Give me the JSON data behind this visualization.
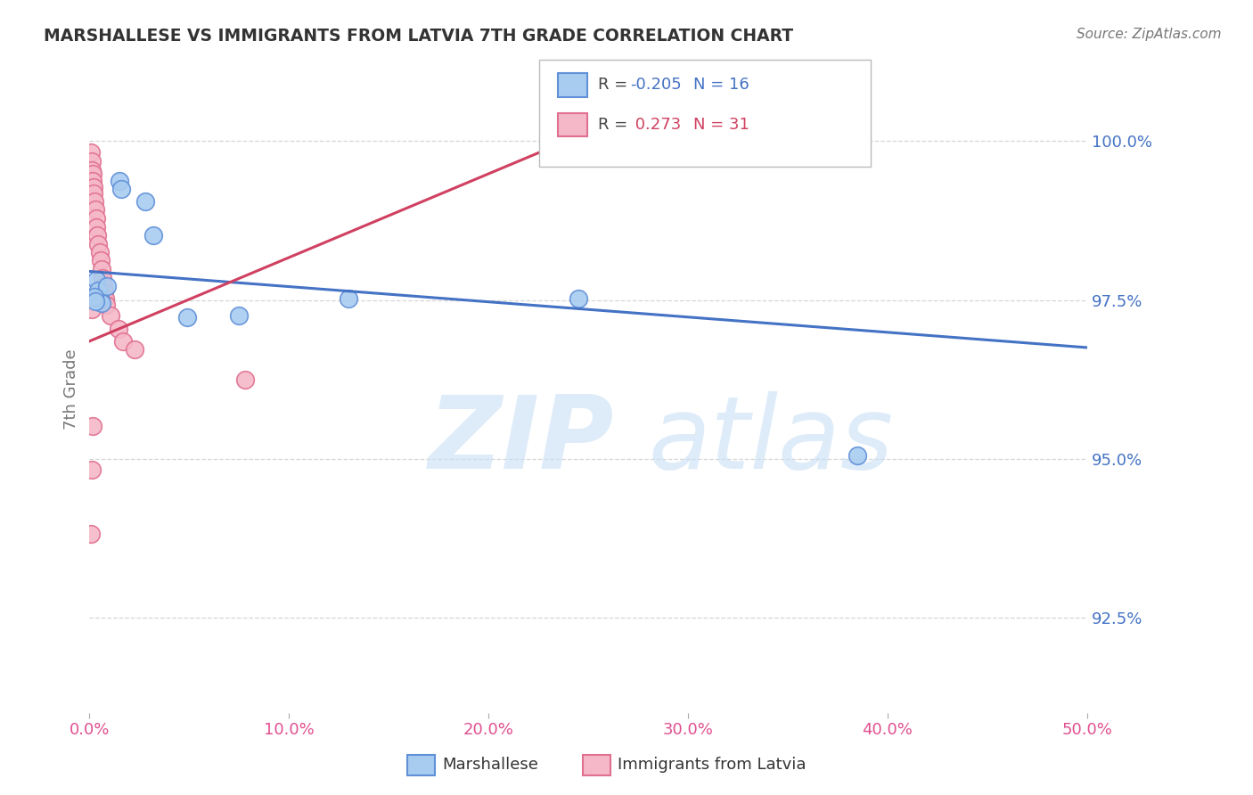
{
  "title": "MARSHALLESE VS IMMIGRANTS FROM LATVIA 7TH GRADE CORRELATION CHART",
  "source": "Source: ZipAtlas.com",
  "ylabel": "7th Grade",
  "x_min": 0.0,
  "x_max": 50.0,
  "y_min": 91.0,
  "y_max": 101.2,
  "y_ticks": [
    92.5,
    95.0,
    97.5,
    100.0
  ],
  "x_ticks": [
    0.0,
    10.0,
    20.0,
    30.0,
    40.0,
    50.0
  ],
  "blue_label": "Marshallese",
  "pink_label": "Immigrants from Latvia",
  "blue_R": -0.205,
  "blue_N": 16,
  "pink_R": 0.273,
  "pink_N": 31,
  "blue_fill": "#A8CCF0",
  "pink_fill": "#F5B8C8",
  "blue_edge": "#6090D8",
  "pink_edge": "#E07090",
  "blue_line_color": "#4472C4",
  "pink_line_color": "#D04060",
  "blue_dots": [
    [
      0.35,
      97.82
    ],
    [
      0.42,
      97.65
    ],
    [
      0.52,
      97.52
    ],
    [
      0.62,
      97.45
    ],
    [
      0.9,
      97.72
    ],
    [
      1.5,
      99.38
    ],
    [
      1.58,
      99.25
    ],
    [
      2.8,
      99.05
    ],
    [
      3.2,
      98.52
    ],
    [
      4.9,
      97.22
    ],
    [
      7.5,
      97.25
    ],
    [
      13.0,
      97.52
    ],
    [
      24.5,
      97.52
    ],
    [
      38.5,
      95.05
    ],
    [
      0.25,
      97.55
    ],
    [
      0.3,
      97.48
    ]
  ],
  "pink_dots": [
    [
      0.06,
      99.82
    ],
    [
      0.1,
      99.68
    ],
    [
      0.12,
      99.55
    ],
    [
      0.15,
      99.48
    ],
    [
      0.17,
      99.38
    ],
    [
      0.2,
      99.28
    ],
    [
      0.22,
      99.18
    ],
    [
      0.25,
      99.05
    ],
    [
      0.28,
      98.92
    ],
    [
      0.32,
      98.78
    ],
    [
      0.36,
      98.65
    ],
    [
      0.4,
      98.52
    ],
    [
      0.45,
      98.38
    ],
    [
      0.5,
      98.25
    ],
    [
      0.55,
      98.12
    ],
    [
      0.6,
      97.98
    ],
    [
      0.65,
      97.85
    ],
    [
      0.7,
      97.72
    ],
    [
      0.75,
      97.62
    ],
    [
      0.8,
      97.52
    ],
    [
      0.85,
      97.42
    ],
    [
      1.05,
      97.25
    ],
    [
      1.45,
      97.05
    ],
    [
      1.7,
      96.85
    ],
    [
      2.25,
      96.72
    ],
    [
      7.8,
      96.25
    ],
    [
      0.18,
      95.52
    ],
    [
      0.1,
      94.82
    ],
    [
      0.06,
      93.82
    ],
    [
      0.12,
      97.35
    ],
    [
      24.5,
      100.08
    ]
  ],
  "blue_line": [
    [
      0.0,
      97.95
    ],
    [
      50.0,
      96.75
    ]
  ],
  "pink_line": [
    [
      0.0,
      96.85
    ],
    [
      24.5,
      100.08
    ]
  ],
  "bg_color": "#FFFFFF",
  "grid_color": "#CCCCCC",
  "title_color": "#333333",
  "ylabel_color": "#777777",
  "xtick_color": "#E05090",
  "ytick_color": "#4472C4",
  "source_color": "#777777"
}
